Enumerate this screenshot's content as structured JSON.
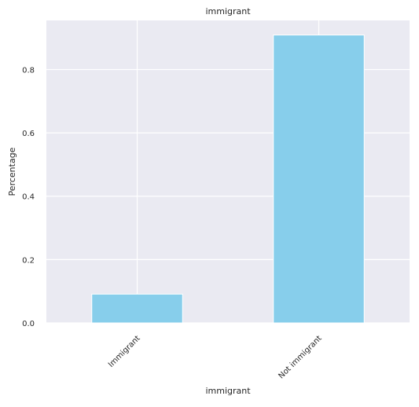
{
  "chart_data": {
    "type": "bar",
    "title": "immigrant",
    "xlabel": "immigrant",
    "ylabel": "Percentage",
    "categories": [
      "Immigrant",
      "Not immigrant"
    ],
    "values": [
      0.091,
      0.909
    ],
    "ylim": [
      0,
      0.955
    ],
    "yticks": [
      0.0,
      0.2,
      0.4,
      0.6,
      0.8
    ],
    "ytick_labels": [
      "0.0",
      "0.2",
      "0.4",
      "0.6",
      "0.8"
    ],
    "grid": true,
    "legend": "none",
    "colors": {
      "bar": "#87ceeb",
      "background": "#eaeaf2",
      "grid": "#ffffff",
      "text": "#262626"
    }
  }
}
